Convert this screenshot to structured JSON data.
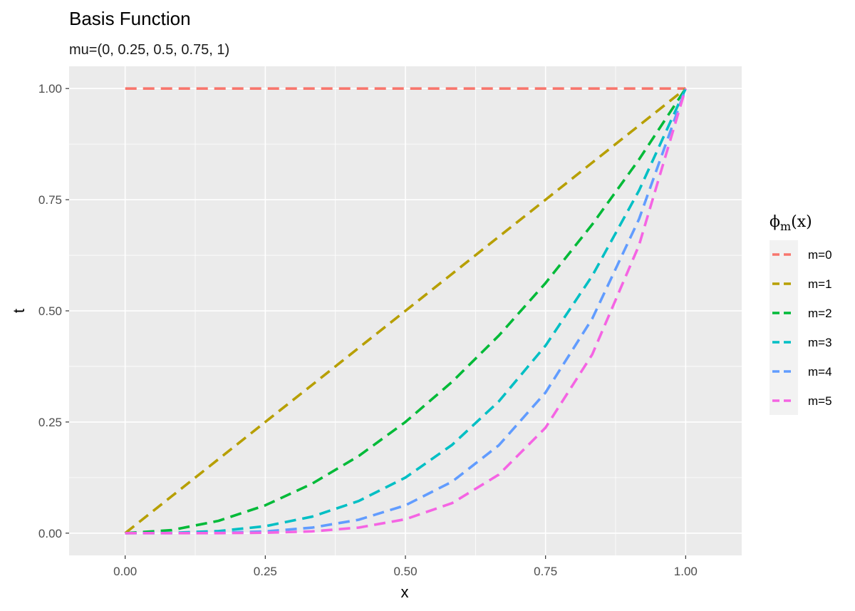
{
  "chart_data": {
    "type": "line",
    "title": "Basis Function",
    "subtitle": "mu=(0, 0.25, 0.5, 0.75, 1)",
    "xlabel": "x",
    "ylabel": "t",
    "xlim": [
      -0.1,
      1.1
    ],
    "ylim": [
      -0.05,
      1.05
    ],
    "x_ticks": [
      "0.00",
      "0.25",
      "0.50",
      "0.75",
      "1.00"
    ],
    "y_ticks": [
      "0.00",
      "0.25",
      "0.50",
      "0.75",
      "1.00"
    ],
    "grid": true,
    "legend": {
      "title_base": "ϕ",
      "title_sub": "m",
      "title_arg": "(x)",
      "position": "right"
    },
    "x": [
      0,
      0.0833,
      0.1667,
      0.25,
      0.3333,
      0.4167,
      0.5,
      0.5833,
      0.6667,
      0.75,
      0.8333,
      0.9167,
      1.0
    ],
    "series": [
      {
        "name": "m=0",
        "color": "#F8766D",
        "values": [
          1,
          1,
          1,
          1,
          1,
          1,
          1,
          1,
          1,
          1,
          1,
          1,
          1
        ]
      },
      {
        "name": "m=1",
        "color": "#B79F00",
        "values": [
          0,
          0.0833,
          0.1667,
          0.25,
          0.3333,
          0.4167,
          0.5,
          0.5833,
          0.6667,
          0.75,
          0.8333,
          0.9167,
          1.0
        ]
      },
      {
        "name": "m=2",
        "color": "#00BA38",
        "values": [
          0,
          0.0069,
          0.0278,
          0.0625,
          0.1111,
          0.1736,
          0.25,
          0.3403,
          0.4444,
          0.5625,
          0.6944,
          0.8403,
          1.0
        ]
      },
      {
        "name": "m=3",
        "color": "#00BFC4",
        "values": [
          0,
          0.0006,
          0.0046,
          0.0156,
          0.037,
          0.0723,
          0.125,
          0.1985,
          0.2963,
          0.4219,
          0.5787,
          0.7703,
          1.0
        ]
      },
      {
        "name": "m=4",
        "color": "#619CFF",
        "values": [
          0,
          0.0,
          0.0008,
          0.0039,
          0.0123,
          0.0301,
          0.0625,
          0.1158,
          0.1975,
          0.3164,
          0.4823,
          0.7061,
          1.0
        ]
      },
      {
        "name": "m=5",
        "color": "#F564E3",
        "values": [
          0,
          0.0,
          0.0001,
          0.001,
          0.0041,
          0.0126,
          0.0313,
          0.0675,
          0.1317,
          0.2373,
          0.4019,
          0.6472,
          1.0
        ]
      }
    ]
  }
}
